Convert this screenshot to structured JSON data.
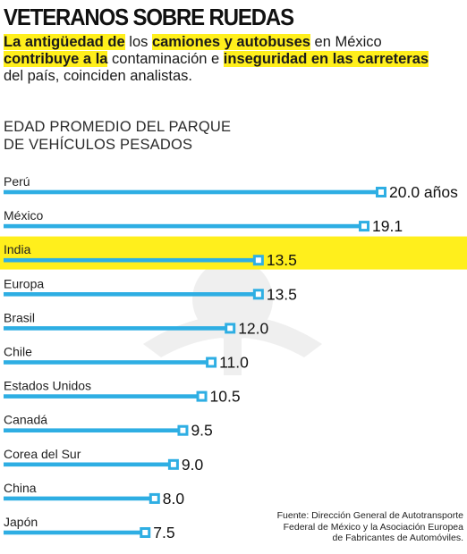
{
  "headline": "VETERANOS SOBRE RUEDAS",
  "subtitle": {
    "line1": [
      {
        "t": "La antigüedad de",
        "hl": true
      },
      {
        "t": " los ",
        "hl": false
      },
      {
        "t": "camiones y autobuses",
        "hl": true
      },
      {
        "t": " en México",
        "hl": false
      }
    ],
    "line2": [
      {
        "t": "contribuye a la",
        "hl": true
      },
      {
        "t": " contaminación e ",
        "hl": false
      },
      {
        "t": "inseguridad en las carreteras",
        "hl": true
      }
    ],
    "line3": [
      {
        "t": "del país, coinciden analistas.",
        "hl": false
      }
    ]
  },
  "chart_heading": [
    "EDAD PROMEDIO DEL PARQUE",
    "DE VEHÍCULOS PESADOS"
  ],
  "source_note": [
    "Fuente: Dirección General de Autotransporte",
    "Federal de México y la Asociación Europea",
    "de Fabricantes de Automóviles."
  ],
  "colors": {
    "bar": "#2eaee3",
    "highlight": "#ffef1c",
    "text": "#1a1a1a"
  },
  "chart_data": {
    "type": "bar",
    "orientation": "horizontal",
    "categories": [
      "Perú",
      "México",
      "India",
      "Europa",
      "Brasil",
      "Chile",
      "Estados Unidos",
      "Canadá",
      "Corea del Sur",
      "China",
      "Japón"
    ],
    "values": [
      20.0,
      19.1,
      13.5,
      13.5,
      12.0,
      11.0,
      10.5,
      9.5,
      9.0,
      8.0,
      7.5
    ],
    "value_labels": [
      "20.0 años",
      "19.1",
      "13.5",
      "13.5",
      "12.0",
      "11.0",
      "10.5",
      "9.5",
      "9.0",
      "8.0",
      "7.5"
    ],
    "highlighted_category": "México",
    "title": "EDAD PROMEDIO DEL PARQUE DE VEHÍCULOS PESADOS",
    "xlabel": "",
    "ylabel": "",
    "grid": false,
    "legend": false
  }
}
